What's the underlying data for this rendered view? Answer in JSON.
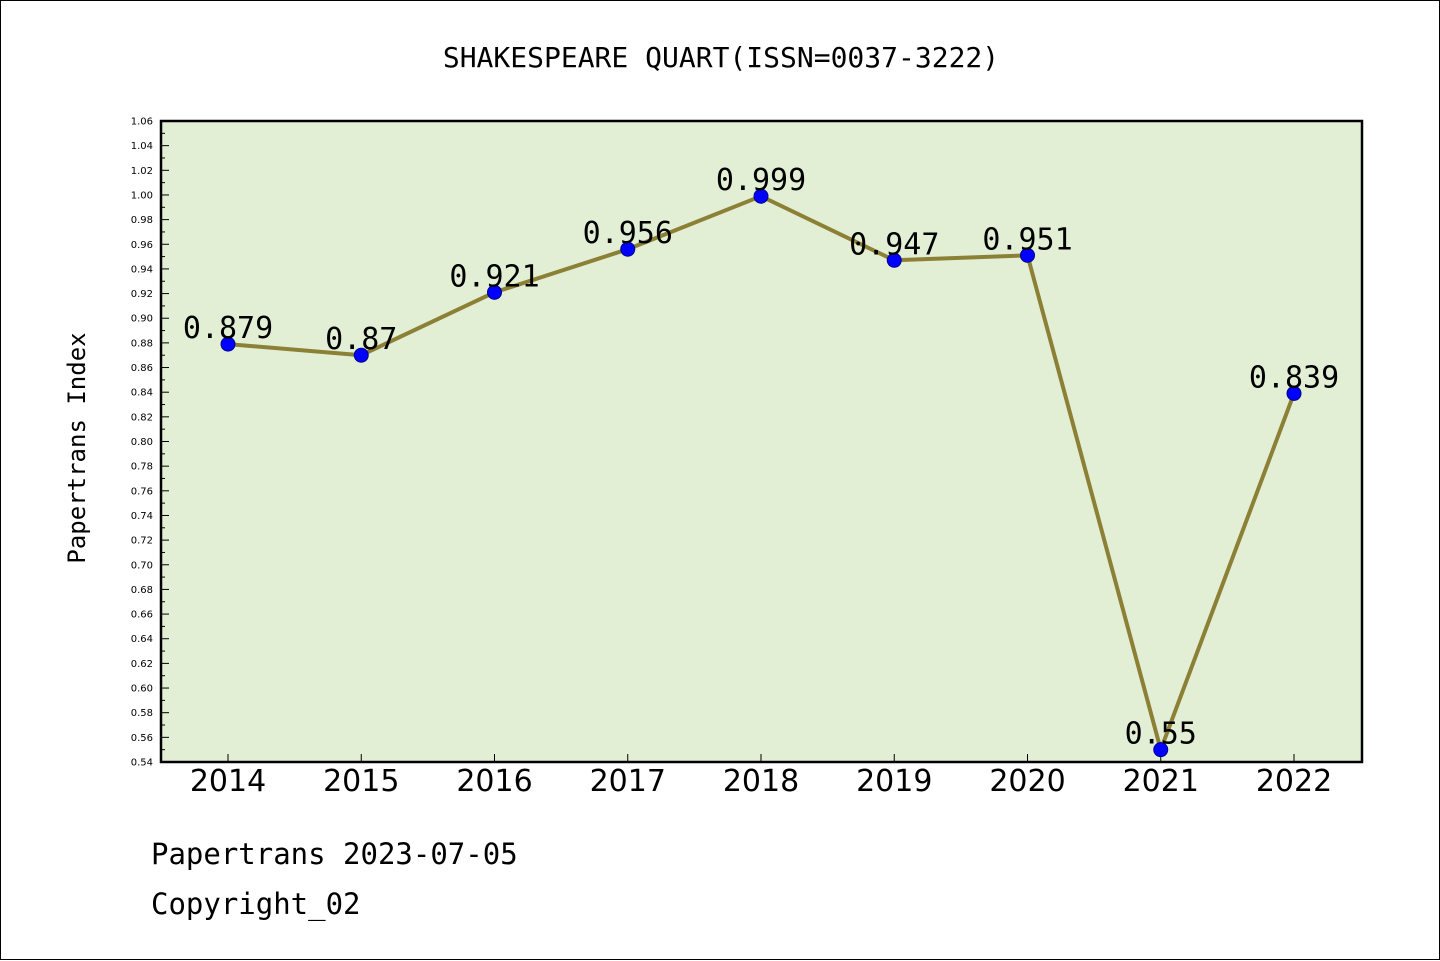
{
  "chart_data": {
    "type": "line",
    "title": "SHAKESPEARE QUART(ISSN=0037-3222)",
    "xlabel": "",
    "ylabel": "Papertrans Index",
    "categories": [
      "2014",
      "2015",
      "2016",
      "2017",
      "2018",
      "2019",
      "2020",
      "2021",
      "2022"
    ],
    "series": [
      {
        "values": [
          0.879,
          0.87,
          0.921,
          0.956,
          0.999,
          0.947,
          0.951,
          0.55,
          0.839
        ]
      }
    ],
    "data_labels": [
      "0.879",
      "0.87",
      "0.921",
      "0.956",
      "0.999",
      "0.947",
      "0.951",
      "0.55",
      "0.839"
    ],
    "ylim": [
      0.54,
      1.06
    ],
    "ytick_step": 0.02,
    "grid": false,
    "colors": {
      "plot_background": "#e2efd5",
      "line": "#8b8035",
      "marker": "#0000ff"
    }
  },
  "footer": {
    "line1": "Papertrans 2023-07-05",
    "line2": "Copyright_02"
  }
}
